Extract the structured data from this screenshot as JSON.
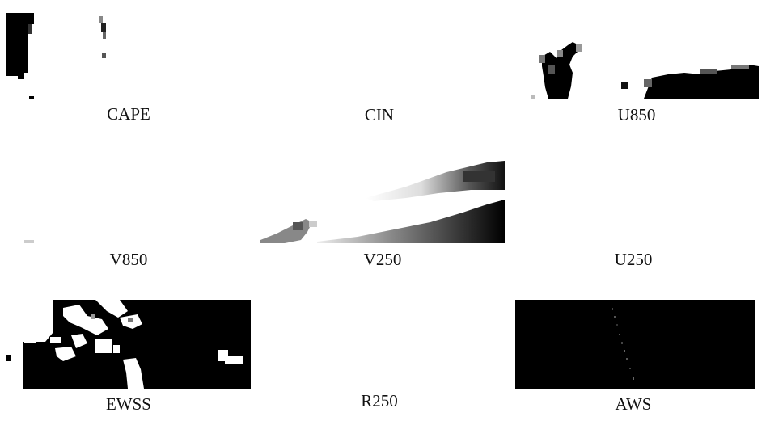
{
  "panels": [
    {
      "id": "cape",
      "label": "CAPE"
    },
    {
      "id": "cin",
      "label": "CIN"
    },
    {
      "id": "u850",
      "label": "U850"
    },
    {
      "id": "v850",
      "label": "V850"
    },
    {
      "id": "v250",
      "label": "V250"
    },
    {
      "id": "u250",
      "label": "U250"
    },
    {
      "id": "ewss",
      "label": "EWSS"
    },
    {
      "id": "r250",
      "label": "R250"
    },
    {
      "id": "aws",
      "label": "AWS"
    }
  ],
  "colors": {
    "background": "#ffffff",
    "feature": "#000000"
  }
}
